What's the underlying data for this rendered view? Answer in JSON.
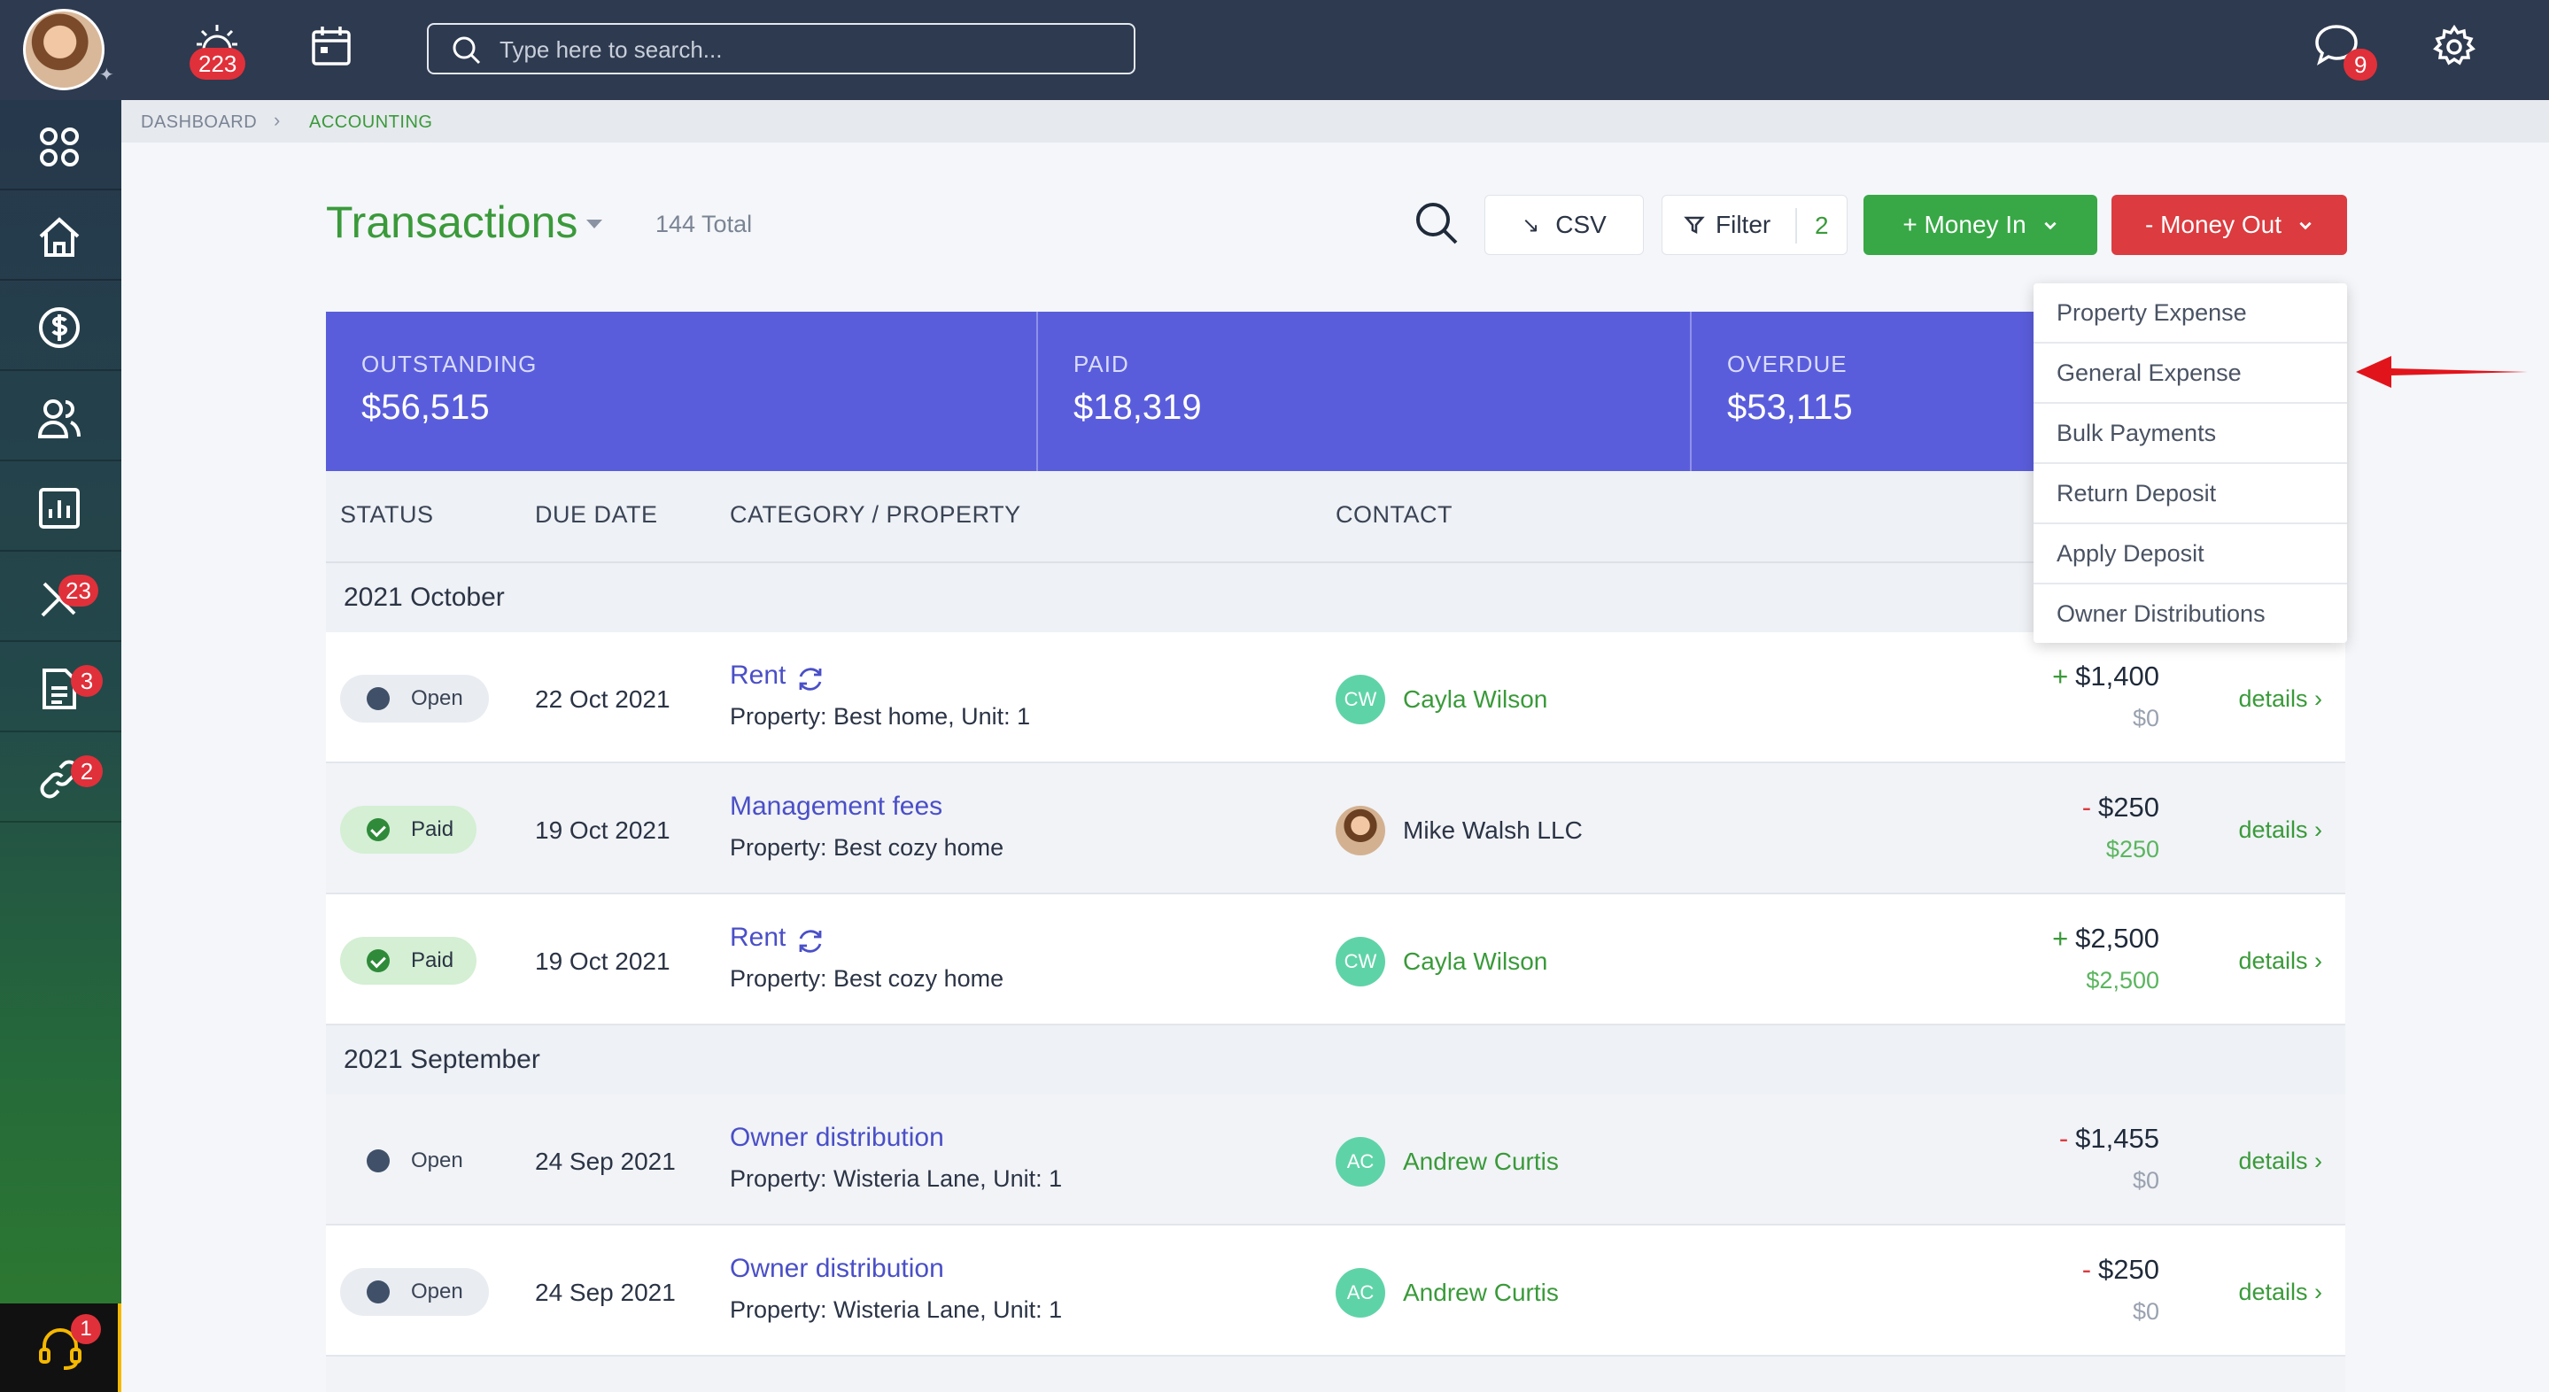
{
  "topbar": {
    "notifications_count": "223",
    "search_placeholder": "Type here to search...",
    "messages_count": "9"
  },
  "sidebar": {
    "badges": {
      "maintenance": "23",
      "documents": "3",
      "links": "2",
      "support": "1"
    }
  },
  "breadcrumb": {
    "root": "DASHBOARD",
    "current": "ACCOUNTING"
  },
  "header": {
    "title": "Transactions",
    "total": "144 Total",
    "csv_label": "CSV",
    "filter_label": "Filter",
    "filter_count": "2",
    "money_in_label": "+ Money In",
    "money_out_label": "- Money Out"
  },
  "summary": [
    {
      "label": "OUTSTANDING",
      "value": "$56,515"
    },
    {
      "label": "PAID",
      "value": "$18,319"
    },
    {
      "label": "OVERDUE",
      "value": "$53,115"
    }
  ],
  "table": {
    "columns": [
      "STATUS",
      "DUE DATE",
      "CATEGORY / PROPERTY",
      "CONTACT"
    ],
    "groups": [
      {
        "label": "2021 October",
        "rows": [
          {
            "status": "Open",
            "due": "22 Oct 2021",
            "category": "Rent",
            "recurring": true,
            "property": "Property: Best home, Unit: 1",
            "initials": "CW",
            "contact": "Cayla Wilson",
            "sign": "+",
            "amount": "$1,400",
            "paid": "$0",
            "details": "details ›"
          },
          {
            "status": "Paid",
            "due": "19 Oct 2021",
            "category": "Management fees",
            "recurring": false,
            "property": "Property: Best cozy home",
            "initials": "",
            "contact": "Mike Walsh LLC",
            "sign": "-",
            "amount": "$250",
            "paid": "$250",
            "details": "details ›"
          },
          {
            "status": "Paid",
            "due": "19 Oct 2021",
            "category": "Rent",
            "recurring": true,
            "property": "Property: Best cozy home",
            "initials": "CW",
            "contact": "Cayla Wilson",
            "sign": "+",
            "amount": "$2,500",
            "paid": "$2,500",
            "details": "details ›"
          }
        ]
      },
      {
        "label": "2021 September",
        "rows": [
          {
            "status": "Open",
            "due": "24 Sep 2021",
            "category": "Owner distribution",
            "recurring": false,
            "property": "Property: Wisteria Lane, Unit: 1",
            "initials": "AC",
            "contact": "Andrew Curtis",
            "sign": "-",
            "amount": "$1,455",
            "paid": "$0",
            "details": "details ›"
          },
          {
            "status": "Open",
            "due": "24 Sep 2021",
            "category": "Owner distribution",
            "recurring": false,
            "property": "Property: Wisteria Lane, Unit: 1",
            "initials": "AC",
            "contact": "Andrew Curtis",
            "sign": "-",
            "amount": "$250",
            "paid": "$0",
            "details": "details ›"
          }
        ]
      }
    ]
  },
  "money_out_menu": [
    "Property Expense",
    "General Expense",
    "Bulk Payments",
    "Return Deposit",
    "Apply Deposit",
    "Owner Distributions"
  ],
  "colors": {
    "accent_green": "#3a9a3a",
    "money_in": "#37a845",
    "money_out": "#dc3b3f",
    "summary_bg": "#5a5ddb",
    "topbar": "#2e3a4f"
  }
}
